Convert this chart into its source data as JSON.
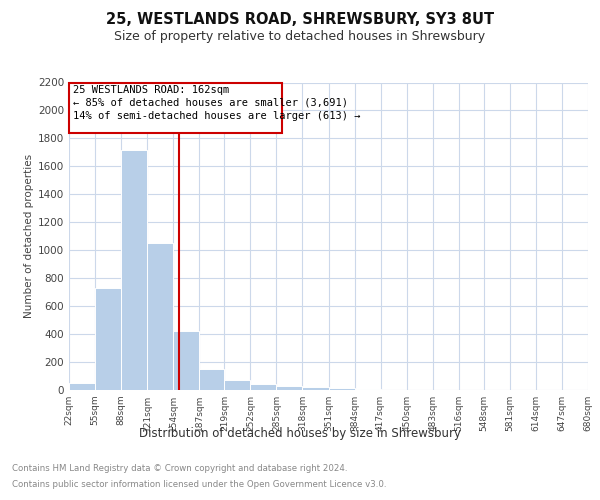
{
  "title1": "25, WESTLANDS ROAD, SHREWSBURY, SY3 8UT",
  "title2": "Size of property relative to detached houses in Shrewsbury",
  "xlabel": "Distribution of detached houses by size in Shrewsbury",
  "ylabel": "Number of detached properties",
  "annotation_title": "25 WESTLANDS ROAD: 162sqm",
  "annotation_line1": "← 85% of detached houses are smaller (3,691)",
  "annotation_line2": "14% of semi-detached houses are larger (613) →",
  "property_size_sqm": 162,
  "bin_edges": [
    22,
    55,
    88,
    121,
    154,
    187,
    219,
    252,
    285,
    318,
    351,
    384,
    417,
    450,
    483,
    516,
    548,
    581,
    614,
    647,
    680
  ],
  "bin_counts": [
    50,
    730,
    1720,
    1050,
    420,
    150,
    75,
    40,
    30,
    20,
    15,
    5,
    0,
    0,
    0,
    0,
    0,
    0,
    0,
    0
  ],
  "bar_color": "#b8cfe8",
  "bar_edge_color": "white",
  "grid_color": "#ccd8ea",
  "annotation_box_color": "#cc0000",
  "vline_color": "#cc0000",
  "ylim": [
    0,
    2200
  ],
  "yticks": [
    0,
    200,
    400,
    600,
    800,
    1000,
    1200,
    1400,
    1600,
    1800,
    2000,
    2200
  ],
  "footer_line1": "Contains HM Land Registry data © Crown copyright and database right 2024.",
  "footer_line2": "Contains public sector information licensed under the Open Government Licence v3.0.",
  "background_color": "#ffffff"
}
